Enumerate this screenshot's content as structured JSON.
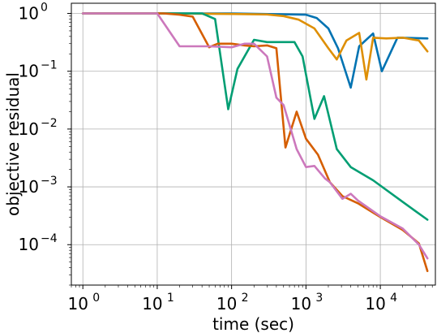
{
  "chart_data": {
    "type": "line",
    "xlabel": "time (sec)",
    "ylabel": "objective residual",
    "xscale": "log",
    "yscale": "log",
    "xlim": [
      0.7,
      55000
    ],
    "ylim": [
      2e-05,
      1.5
    ],
    "grid": true,
    "x_ticks": [
      {
        "base": "10",
        "exp": "0",
        "value": 1
      },
      {
        "base": "10",
        "exp": "1",
        "value": 10
      },
      {
        "base": "10",
        "exp": "2",
        "value": 100
      },
      {
        "base": "10",
        "exp": "3",
        "value": 1000
      },
      {
        "base": "10",
        "exp": "4",
        "value": 10000
      }
    ],
    "y_ticks": [
      {
        "base": "10",
        "exp": "0",
        "value": 1
      },
      {
        "base": "10",
        "exp": "−1",
        "value": 0.1
      },
      {
        "base": "10",
        "exp": "−2",
        "value": 0.01
      },
      {
        "base": "10",
        "exp": "−3",
        "value": 0.001
      },
      {
        "base": "10",
        "exp": "−4",
        "value": 0.0001
      }
    ],
    "series": [
      {
        "color": "#0173b2",
        "x": [
          1,
          10,
          100,
          1000,
          1400,
          2000,
          2700,
          4000,
          5200,
          8000,
          10500,
          17000,
          43000
        ],
        "y": [
          1.0,
          1.0,
          1.0,
          0.95,
          0.83,
          0.55,
          0.25,
          0.052,
          0.27,
          0.45,
          0.1,
          0.38,
          0.37
        ]
      },
      {
        "color": "#de8f05",
        "x": [
          1,
          10,
          100,
          300,
          500,
          800,
          1300,
          2000,
          2600,
          3500,
          5200,
          6500,
          8000,
          12000,
          20000,
          33000,
          43000
        ],
        "y": [
          1.0,
          1.0,
          0.98,
          0.96,
          0.9,
          0.78,
          0.55,
          0.25,
          0.16,
          0.34,
          0.46,
          0.072,
          0.38,
          0.37,
          0.38,
          0.34,
          0.22
        ]
      },
      {
        "color": "#029e73",
        "x": [
          1,
          10,
          40,
          60,
          90,
          120,
          200,
          300,
          500,
          700,
          900,
          1300,
          1750,
          2600,
          4000,
          8000,
          20000,
          43000
        ],
        "y": [
          1.0,
          1.0,
          1.0,
          0.8,
          0.022,
          0.11,
          0.35,
          0.32,
          0.32,
          0.32,
          0.18,
          0.015,
          0.037,
          0.0045,
          0.0022,
          0.0013,
          0.00055,
          0.00027
        ]
      },
      {
        "color": "#d55e00",
        "x": [
          1,
          12,
          20,
          30,
          50,
          65,
          100,
          150,
          200,
          300,
          400,
          530,
          750,
          1000,
          1450,
          2100,
          3100,
          5000,
          10000,
          20000,
          33000,
          43000
        ],
        "y": [
          1.0,
          1.0,
          0.95,
          0.88,
          0.26,
          0.3,
          0.3,
          0.28,
          0.27,
          0.28,
          0.25,
          0.0048,
          0.02,
          0.0068,
          0.0036,
          0.0012,
          0.00069,
          0.00052,
          0.0003,
          0.00018,
          0.000105,
          3.5e-05
        ]
      },
      {
        "color": "#cc78bc",
        "x": [
          1,
          10,
          20,
          30,
          50,
          100,
          150,
          200,
          300,
          400,
          500,
          750,
          1000,
          1300,
          1800,
          2100,
          3100,
          4000,
          5000,
          10000,
          20000,
          33000,
          43000
        ],
        "y": [
          1.0,
          1.0,
          0.27,
          0.27,
          0.27,
          0.26,
          0.3,
          0.3,
          0.18,
          0.035,
          0.026,
          0.0045,
          0.0022,
          0.0023,
          0.0014,
          0.0012,
          0.00062,
          0.00076,
          0.00058,
          0.00031,
          0.00019,
          0.0001,
          5.8e-05
        ]
      }
    ]
  }
}
